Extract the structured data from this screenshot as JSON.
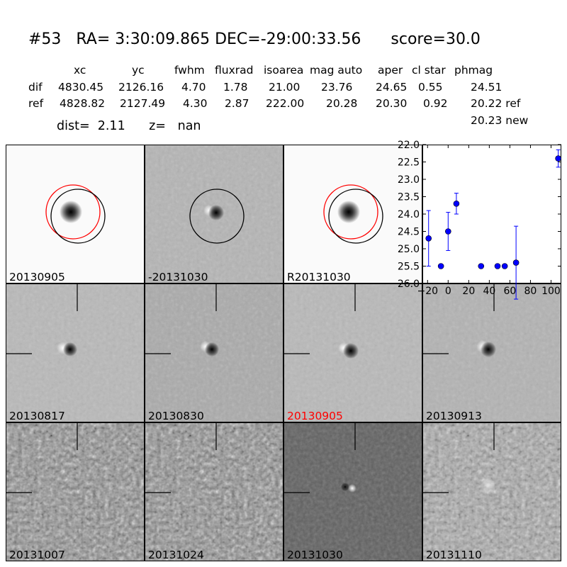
{
  "header": {
    "title": "#53   RA= 3:30:09.865 DEC=-29:00:33.56      score=30.0",
    "columns": [
      "xc",
      "yc",
      "fwhm",
      "fluxrad",
      "isoarea",
      "mag auto",
      "aper",
      "cl star",
      "phmag"
    ],
    "rows": [
      {
        "name": "dif",
        "values": [
          "4830.45",
          "2126.16",
          "4.70",
          "1.78",
          "21.00",
          "23.76",
          "24.65",
          "0.55",
          "24.51"
        ]
      },
      {
        "name": "ref",
        "values": [
          "4828.82",
          "2127.49",
          "4.30",
          "2.87",
          "222.00",
          "20.28",
          "20.30",
          "0.92",
          "20.22 ref"
        ]
      }
    ],
    "extra_phmag": "20.23 new",
    "dist_line": "dist=  2.11      z=   nan"
  },
  "stamps": {
    "top": [
      {
        "label": "20130905",
        "color": "#000000"
      },
      {
        "label": "-20131030",
        "color": "#000000"
      },
      {
        "label": "R20131030",
        "color": "#000000"
      }
    ],
    "middle": [
      {
        "label": "20130817",
        "color": "#000000"
      },
      {
        "label": "20130830",
        "color": "#000000"
      },
      {
        "label": "20130905",
        "color": "#ff0000"
      },
      {
        "label": "20130913",
        "color": "#000000"
      }
    ],
    "bottom": [
      {
        "label": "20131007",
        "color": "#000000"
      },
      {
        "label": "20131024",
        "color": "#000000"
      },
      {
        "label": "20131030",
        "color": "#000000"
      },
      {
        "label": "20131110",
        "color": "#000000"
      }
    ]
  },
  "chart_data": {
    "type": "scatter",
    "title": "",
    "xlabel": "",
    "ylabel": "",
    "xlim": [
      -25,
      110
    ],
    "ylim": [
      26.0,
      22.0
    ],
    "y_inverted": true,
    "xticks": [
      -20,
      0,
      20,
      40,
      60,
      80,
      100
    ],
    "yticks": [
      "22.0",
      "22.5",
      "23.0",
      "23.5",
      "24.0",
      "24.5",
      "25.0",
      "25.5",
      "26.0"
    ],
    "marker_color": "#0000ff",
    "points": [
      {
        "x": -19,
        "y": 24.7,
        "err": 0.8
      },
      {
        "x": -7,
        "y": 25.5,
        "err": 0.05
      },
      {
        "x": 0,
        "y": 24.5,
        "err": 0.55
      },
      {
        "x": 8,
        "y": 23.7,
        "err": 0.3
      },
      {
        "x": 32,
        "y": 25.5,
        "err": 0.05
      },
      {
        "x": 48,
        "y": 25.5,
        "err": 0.05
      },
      {
        "x": 55,
        "y": 25.5,
        "err": 0.05
      },
      {
        "x": 66,
        "y": 25.4,
        "err": 1.05
      },
      {
        "x": 107,
        "y": 22.4,
        "err": 0.25
      }
    ]
  }
}
